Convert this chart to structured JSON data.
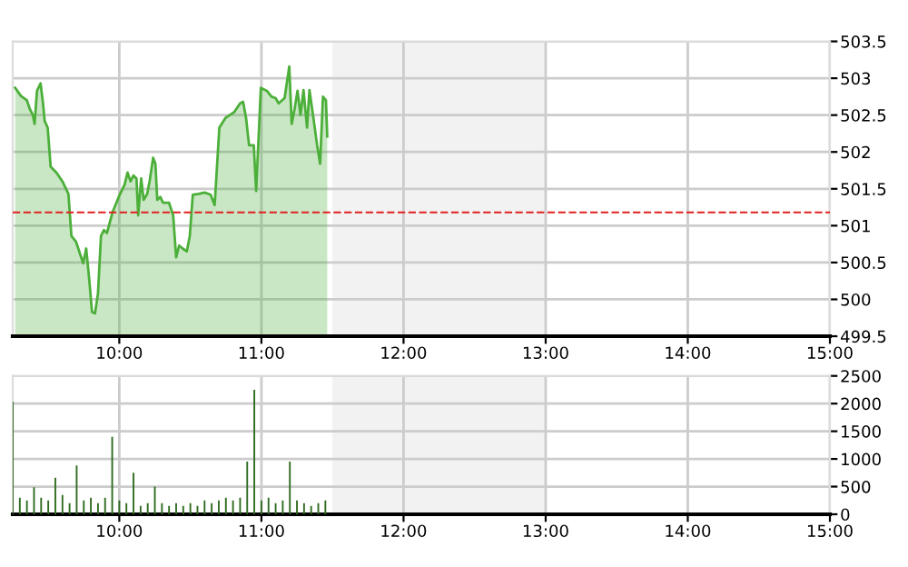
{
  "chart_data": [
    {
      "type": "area",
      "x": [
        9.267,
        9.308,
        9.35,
        9.371,
        9.392,
        9.404,
        9.421,
        9.446,
        9.463,
        9.475,
        9.496,
        9.517,
        9.558,
        9.6,
        9.642,
        9.663,
        9.696,
        9.725,
        9.746,
        9.767,
        9.788,
        9.808,
        9.829,
        9.85,
        9.871,
        9.892,
        9.913,
        9.954,
        9.996,
        10.038,
        10.058,
        10.079,
        10.1,
        10.121,
        10.133,
        10.154,
        10.171,
        10.196,
        10.213,
        10.238,
        10.254,
        10.267,
        10.288,
        10.308,
        10.35,
        10.379,
        10.4,
        10.421,
        10.446,
        10.475,
        10.496,
        10.517,
        10.558,
        10.6,
        10.642,
        10.671,
        10.704,
        10.746,
        10.808,
        10.85,
        10.871,
        10.892,
        10.913,
        10.946,
        10.963,
        10.996,
        11.038,
        11.071,
        11.1,
        11.121,
        11.163,
        11.196,
        11.213,
        11.233,
        11.254,
        11.275,
        11.296,
        11.321,
        11.338,
        11.363,
        11.392,
        11.413,
        11.433,
        11.454,
        11.463
      ],
      "series": [
        {
          "color": "#4caf3a",
          "values": [
            502.87,
            502.76,
            502.7,
            502.58,
            502.5,
            502.38,
            502.83,
            502.93,
            502.66,
            502.42,
            502.33,
            501.8,
            501.72,
            501.6,
            501.43,
            500.86,
            500.78,
            500.61,
            500.49,
            500.69,
            500.28,
            499.83,
            499.81,
            500.08,
            500.86,
            500.94,
            500.9,
            501.19,
            501.39,
            501.56,
            501.72,
            501.6,
            501.68,
            501.64,
            501.14,
            501.64,
            501.35,
            501.43,
            501.6,
            501.92,
            501.84,
            501.35,
            501.39,
            501.31,
            501.31,
            501.14,
            500.57,
            500.73,
            500.69,
            500.65,
            500.86,
            501.42,
            501.43,
            501.45,
            501.42,
            501.28,
            502.33,
            502.46,
            502.54,
            502.66,
            502.68,
            502.46,
            502.09,
            502.09,
            501.47,
            502.87,
            502.83,
            502.75,
            502.73,
            502.66,
            502.73,
            503.16,
            502.38,
            502.58,
            502.83,
            502.5,
            502.84,
            502.33,
            502.84,
            502.5,
            502.09,
            501.84,
            502.75,
            502.7,
            502.21
          ]
        }
      ],
      "xlim": [
        9.25,
        15
      ],
      "xticks": [
        {
          "value": 10,
          "label": "10:00"
        },
        {
          "value": 11,
          "label": "11:00"
        },
        {
          "value": 12,
          "label": "12:00"
        },
        {
          "value": 13,
          "label": "13:00"
        },
        {
          "value": 14,
          "label": "14:00"
        },
        {
          "value": 15,
          "label": "15:00"
        }
      ],
      "ylim": [
        499.5,
        503.5
      ],
      "yticks": [
        499.5,
        500,
        500.5,
        501,
        501.5,
        502,
        502.5,
        503,
        503.5
      ],
      "grid": true,
      "ref_lines": [
        {
          "axis": "y",
          "value": 501.18,
          "color": "#e02020",
          "line_style": "dashed"
        }
      ],
      "bands": [
        {
          "axis": "x",
          "from": 11.5,
          "to": 13,
          "color": "#f2f2f2"
        }
      ]
    },
    {
      "type": "bar",
      "x": [
        9.25,
        9.3,
        9.35,
        9.4,
        9.45,
        9.5,
        9.55,
        9.6,
        9.65,
        9.7,
        9.75,
        9.8,
        9.85,
        9.9,
        9.95,
        10.0,
        10.05,
        10.1,
        10.15,
        10.2,
        10.25,
        10.3,
        10.35,
        10.4,
        10.45,
        10.5,
        10.55,
        10.6,
        10.65,
        10.7,
        10.75,
        10.8,
        10.85,
        10.9,
        10.95,
        11.0,
        11.05,
        11.1,
        11.15,
        11.2,
        11.25,
        11.3,
        11.35,
        11.4,
        11.45
      ],
      "series": [
        {
          "color": "#2e6b1e",
          "values": [
            2030,
            300,
            250,
            490,
            300,
            250,
            660,
            350,
            200,
            880,
            250,
            300,
            200,
            300,
            1400,
            250,
            200,
            750,
            150,
            200,
            500,
            200,
            150,
            200,
            150,
            200,
            150,
            250,
            200,
            250,
            300,
            250,
            300,
            950,
            2250,
            250,
            300,
            200,
            250,
            950,
            250,
            200,
            150,
            200,
            250
          ]
        }
      ],
      "xlim": [
        9.25,
        15
      ],
      "xticks": [
        {
          "value": 10,
          "label": "10:00"
        },
        {
          "value": 11,
          "label": "11:00"
        },
        {
          "value": 12,
          "label": "12:00"
        },
        {
          "value": 13,
          "label": "13:00"
        },
        {
          "value": 14,
          "label": "14:00"
        },
        {
          "value": 15,
          "label": "15:00"
        }
      ],
      "ylim": [
        0,
        2500
      ],
      "yticks": [
        0,
        500,
        1000,
        1500,
        2000,
        2500
      ],
      "grid": true,
      "bands": [
        {
          "axis": "x",
          "from": 11.5,
          "to": 13,
          "color": "#f2f2f2"
        }
      ]
    }
  ]
}
